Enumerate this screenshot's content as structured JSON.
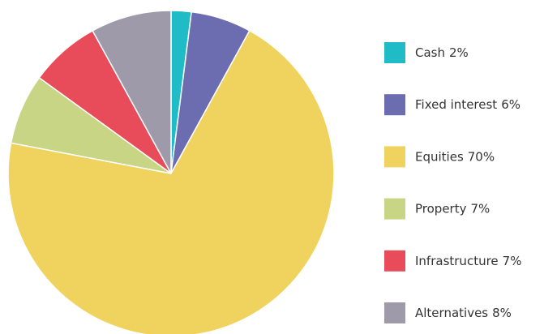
{
  "chart_data": {
    "type": "pie",
    "categories": [
      "Cash",
      "Fixed interest",
      "Equities",
      "Property",
      "Infrastructure",
      "Alternatives"
    ],
    "values": [
      2,
      6,
      70,
      7,
      7,
      8
    ],
    "value_labels": [
      "2%",
      "6%",
      "70%",
      "7%",
      "7%",
      "8%"
    ],
    "colors": [
      "#1fbcc8",
      "#6b6db0",
      "#f0d35e",
      "#c8d584",
      "#e84c5a",
      "#9e9aa9"
    ],
    "legend": "right"
  }
}
